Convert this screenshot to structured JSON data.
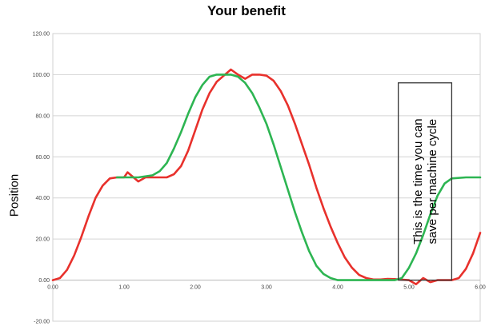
{
  "title": "Your benefit",
  "chart_data": {
    "type": "line",
    "title": "Your benefit",
    "xlabel": "",
    "ylabel": "Position",
    "xlim": [
      0,
      6
    ],
    "ylim": [
      -20,
      120
    ],
    "x_ticks": [
      "0.00",
      "1.00",
      "2.00",
      "3.00",
      "4.00",
      "5.00",
      "6.00"
    ],
    "y_ticks": [
      "120.00",
      "100.00",
      "80.00",
      "60.00",
      "40.00",
      "20.00",
      "0.00",
      "-20.00"
    ],
    "grid": true,
    "series": [
      {
        "color": "#e8312c",
        "x": [
          0,
          0.1,
          0.2,
          0.3,
          0.4,
          0.5,
          0.6,
          0.7,
          0.8,
          0.9,
          1.0,
          1.05,
          1.2,
          1.3,
          1.4,
          1.6,
          1.7,
          1.8,
          1.9,
          2.0,
          2.1,
          2.2,
          2.3,
          2.4,
          2.5,
          2.6,
          2.7,
          2.8,
          2.9,
          3.0,
          3.1,
          3.2,
          3.3,
          3.4,
          3.5,
          3.6,
          3.7,
          3.8,
          3.9,
          4.0,
          4.1,
          4.2,
          4.3,
          4.4,
          4.5,
          4.6,
          4.7,
          4.8,
          4.9,
          5.0,
          5.1,
          5.2,
          5.3,
          5.4,
          5.5,
          5.6,
          5.7,
          5.8,
          5.9,
          6.0
        ],
        "y": [
          0,
          1,
          5,
          12,
          21,
          31,
          40,
          46,
          49.5,
          50,
          50,
          52.5,
          48,
          50,
          50,
          50,
          51.5,
          55.5,
          63,
          73,
          83,
          91,
          96.5,
          99.5,
          102.5,
          100,
          98,
          100,
          100,
          99.5,
          97,
          92,
          85,
          76,
          66,
          56,
          45,
          35,
          26,
          18,
          11,
          6,
          2.5,
          1,
          0.3,
          0.3,
          0.6,
          0.5,
          0.2,
          0,
          -2,
          1,
          -1,
          0,
          0,
          0,
          1,
          5.5,
          13,
          23
        ]
      },
      {
        "color": "#2db552",
        "x": [
          0.9,
          1.0,
          1.2,
          1.4,
          1.5,
          1.6,
          1.7,
          1.8,
          1.9,
          2.0,
          2.1,
          2.2,
          2.3,
          2.4,
          2.5,
          2.6,
          2.7,
          2.8,
          2.9,
          3.0,
          3.1,
          3.2,
          3.3,
          3.4,
          3.5,
          3.6,
          3.7,
          3.8,
          3.9,
          4.0,
          4.2,
          4.4,
          4.6,
          4.8,
          4.9,
          5.0,
          5.1,
          5.2,
          5.3,
          5.4,
          5.5,
          5.6,
          5.8,
          6.0
        ],
        "y": [
          50,
          50,
          50,
          51,
          53,
          57,
          64,
          72,
          81,
          89,
          95,
          99,
          100,
          100,
          100,
          99,
          96,
          91,
          84,
          76,
          66,
          55,
          44,
          33,
          23,
          14,
          7,
          3,
          1,
          0,
          0,
          0,
          0,
          0,
          1,
          6,
          13,
          22,
          32,
          41,
          47,
          49.5,
          50,
          50
        ]
      }
    ],
    "annotation": {
      "line1": "This is the time you can",
      "line2": "save per machine cycle",
      "x_range": [
        4.85,
        5.6
      ],
      "y_range": [
        0,
        96
      ]
    }
  }
}
